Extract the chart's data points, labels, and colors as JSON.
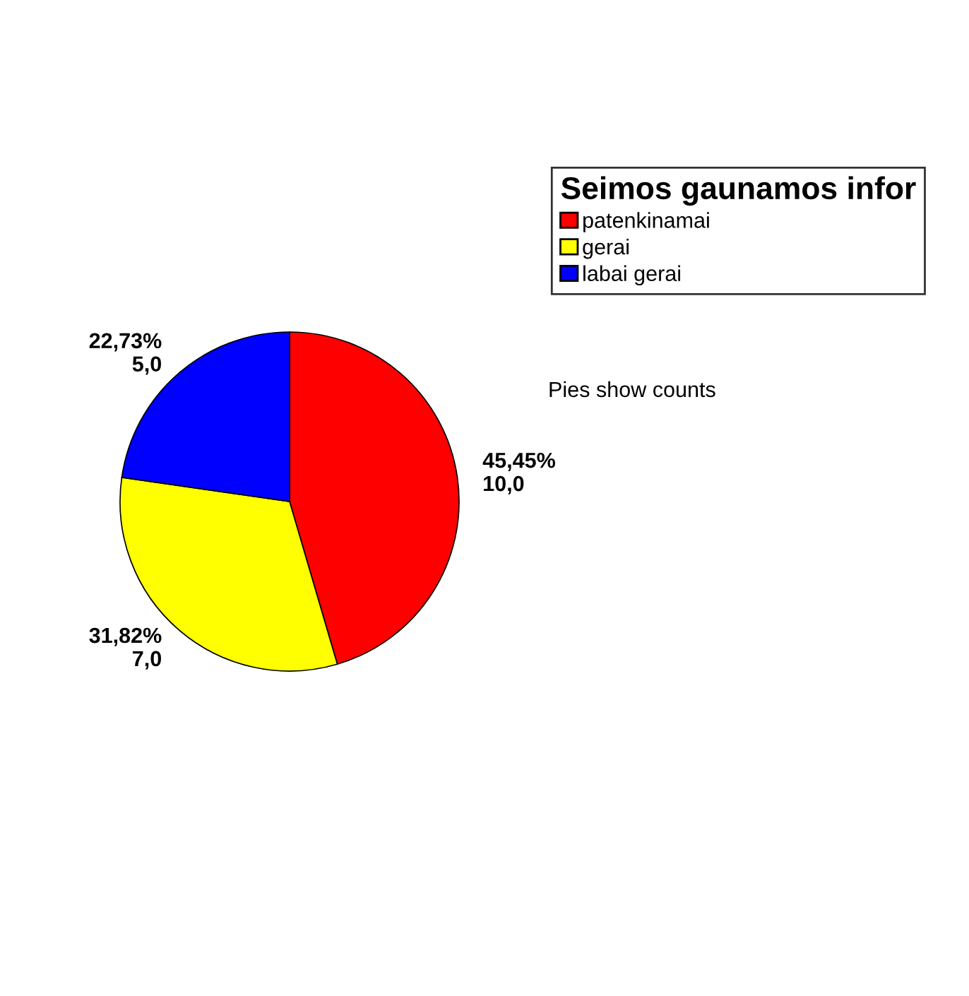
{
  "chart_data": {
    "type": "pie",
    "categories": [
      "patenkinamai",
      "gerai",
      "labai gerai"
    ],
    "values": [
      10,
      7,
      5
    ],
    "colors": [
      "#ff0000",
      "#ffff00",
      "#0000ff"
    ],
    "value_labels": [
      "45,45%\n10,0",
      "31,82%\n7,0",
      "22,73%\n5,0"
    ],
    "legend_title": "Seimos gaunamos infor",
    "legend": "top right",
    "annotations": [
      "Pies show counts"
    ]
  }
}
